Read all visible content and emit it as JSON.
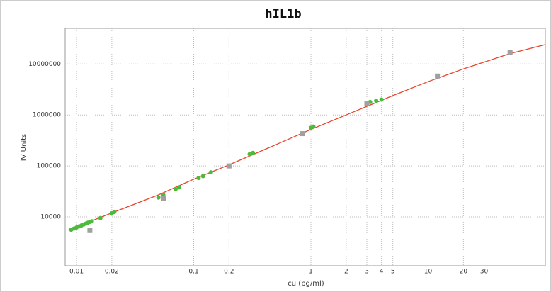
{
  "chart_data": {
    "type": "scatter",
    "title": "hIL1b",
    "x_label": "cu (pg/ml)",
    "y_label": "IV Units",
    "xscale": "log",
    "yscale": "log",
    "grid": true,
    "xlim": [
      0.008,
      100
    ],
    "ylim": [
      1100,
      50000000
    ],
    "xticks": [
      0.01,
      0.02,
      0.1,
      0.2,
      1,
      2,
      3,
      4,
      5,
      10,
      20,
      30
    ],
    "yticks": [
      10000,
      100000,
      1000000,
      10000000
    ],
    "series": [
      {
        "type": "line",
        "color": "#e8452c",
        "x": [
          0.0085,
          0.02,
          0.05,
          0.1,
          0.2,
          0.5,
          1,
          2,
          5,
          10,
          20,
          50,
          100
        ],
        "values": [
          5500,
          12000,
          27000,
          55000,
          105000,
          260000,
          520000,
          1000000,
          2400000,
          4500000,
          8000000,
          16000000,
          24000000
        ]
      },
      {
        "type": "scatter",
        "marker": "circle",
        "color": "#4cbb3c",
        "x": [
          0.009,
          0.0095,
          0.01,
          0.0105,
          0.011,
          0.0115,
          0.012,
          0.0125,
          0.013,
          0.0135,
          0.016,
          0.02,
          0.021,
          0.05,
          0.055,
          0.07,
          0.075,
          0.11,
          0.12,
          0.14,
          0.3,
          0.32,
          1.0,
          1.05,
          3.2,
          3.6,
          4.0
        ],
        "values": [
          5600,
          5900,
          6200,
          6500,
          6800,
          7100,
          7400,
          7700,
          8000,
          8200,
          9500,
          11800,
          12500,
          24000,
          27000,
          35000,
          38000,
          58000,
          63000,
          75000,
          170000,
          180000,
          560000,
          590000,
          1800000,
          1900000,
          2000000
        ]
      },
      {
        "type": "scatter",
        "marker": "square",
        "color": "#a0a0a0",
        "x": [
          0.013,
          0.055,
          0.2,
          0.85,
          3.0,
          12,
          50
        ],
        "values": [
          5400,
          23000,
          100000,
          430000,
          1650000,
          5800000,
          17000000
        ]
      }
    ]
  }
}
